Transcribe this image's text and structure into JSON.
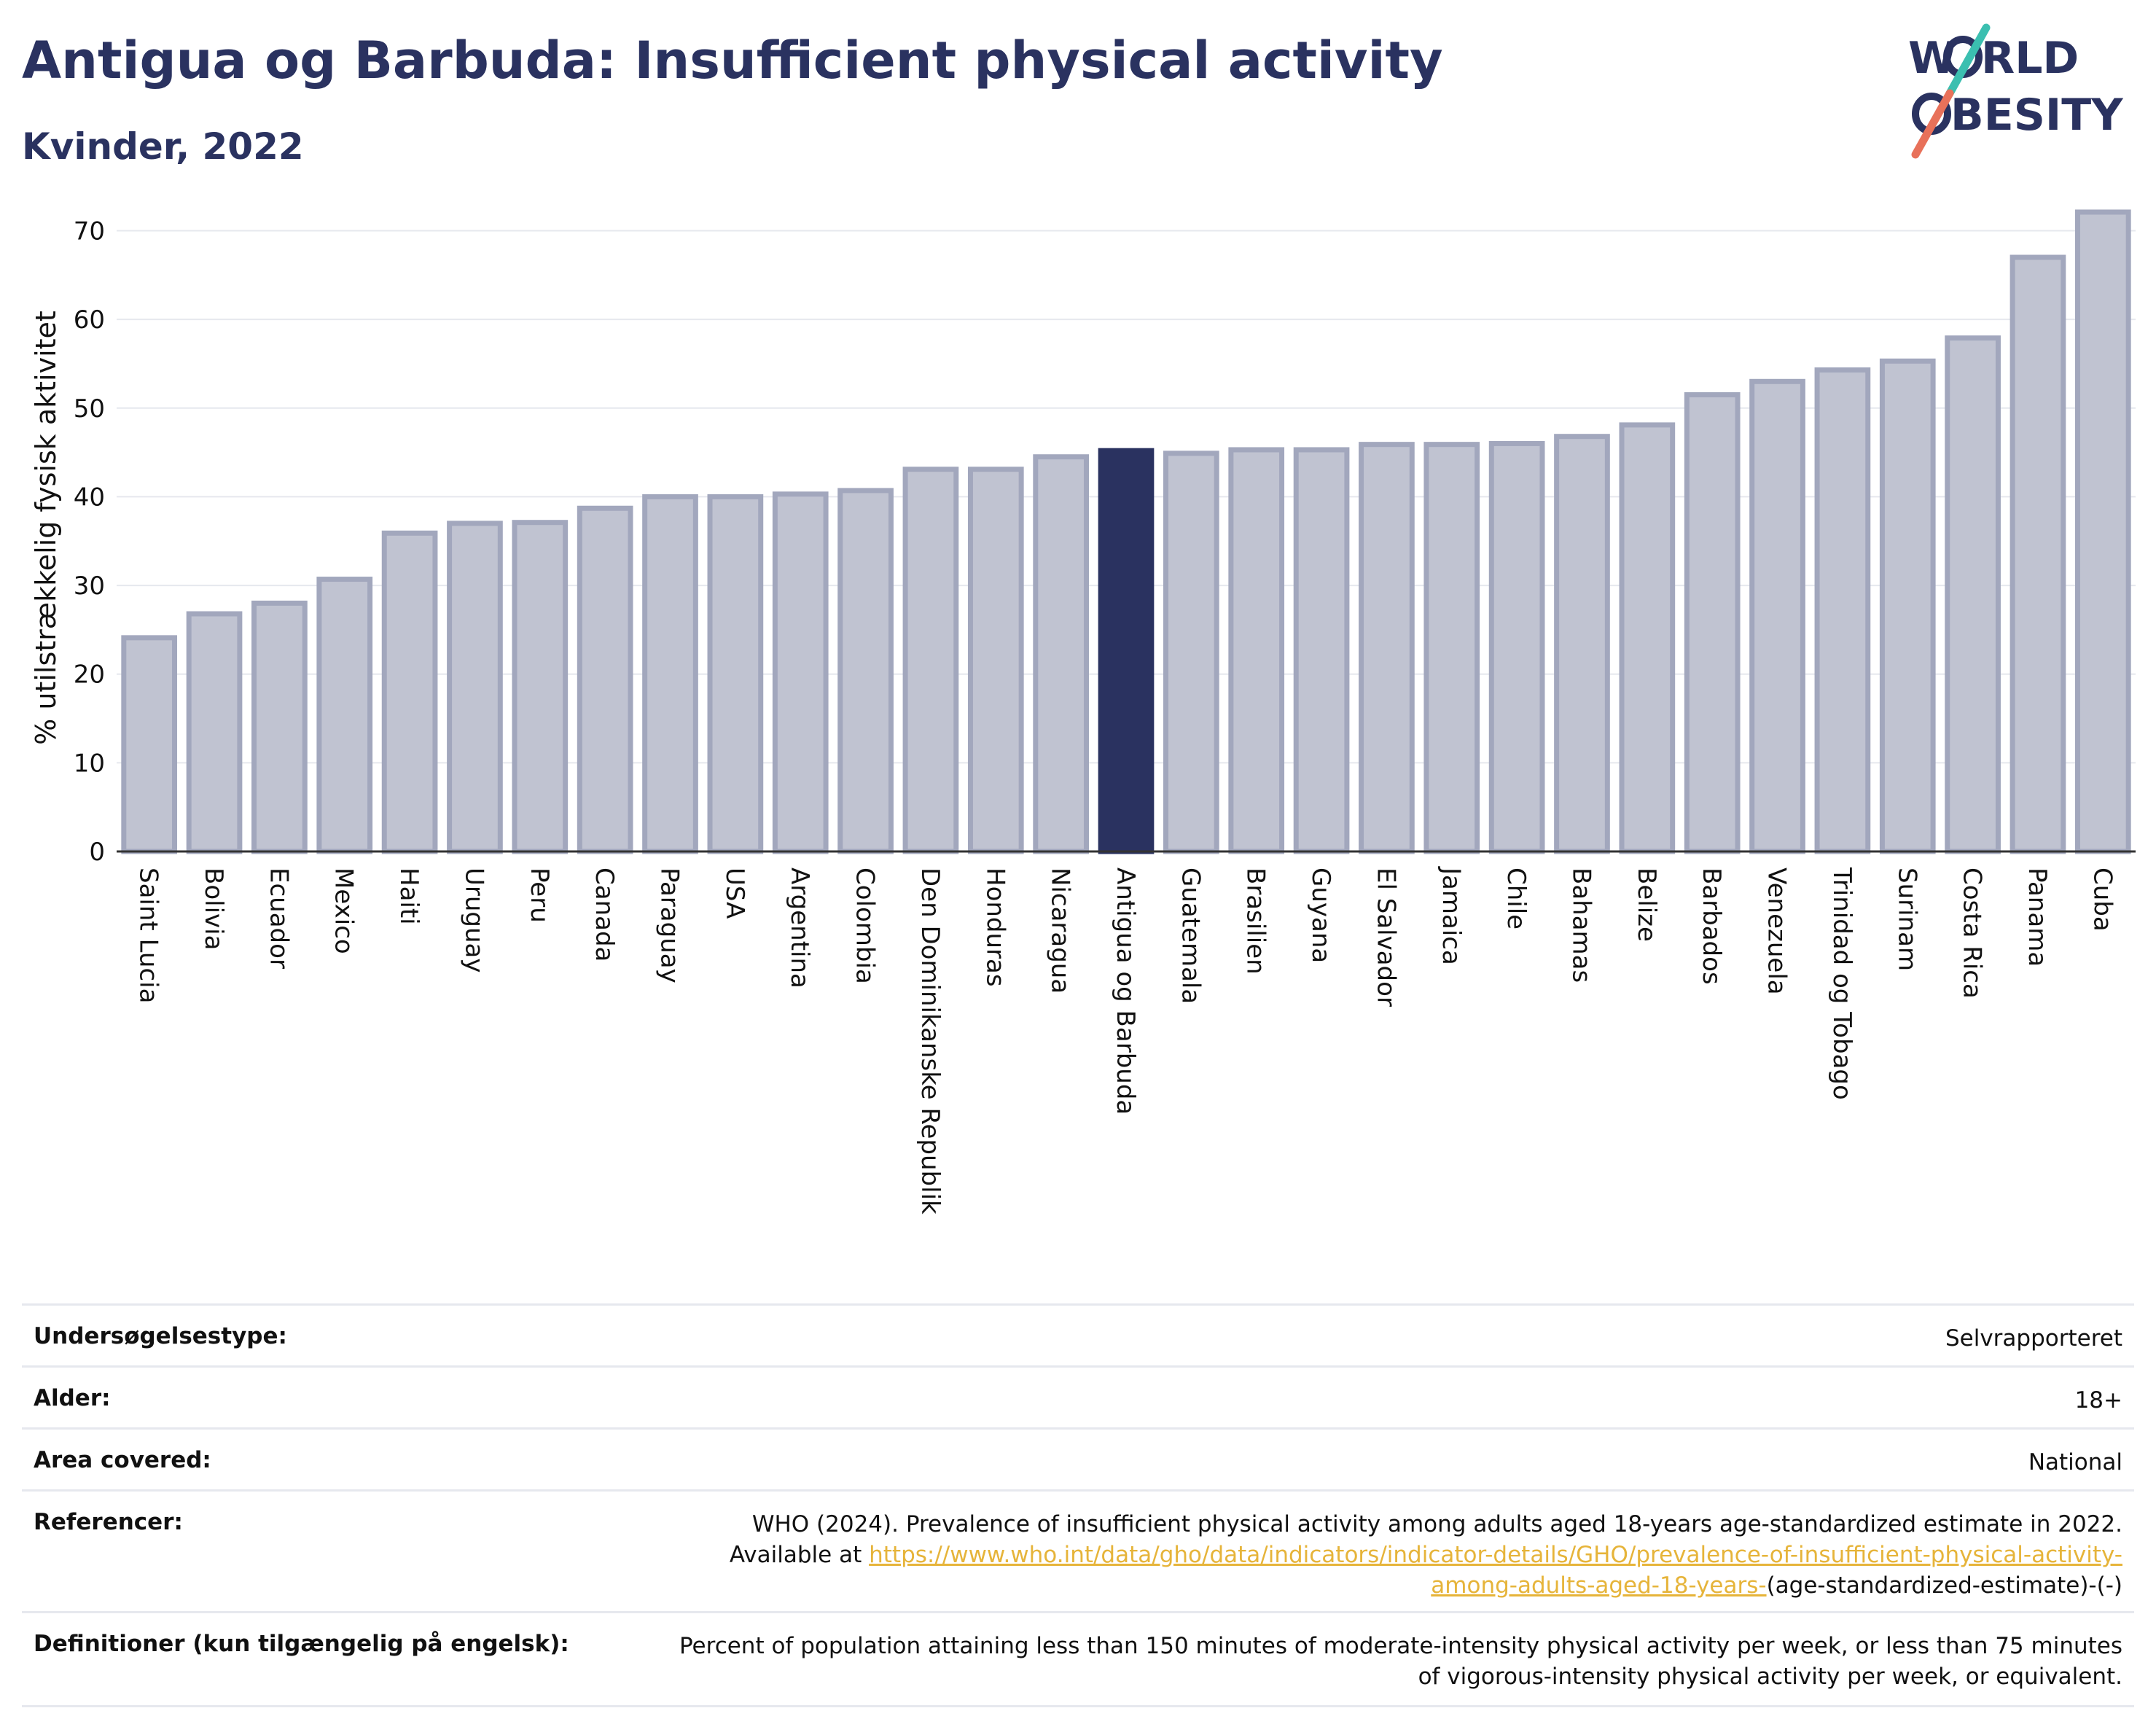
{
  "header": {
    "title": "Antigua og Barbuda: Insufficient physical activity",
    "subtitle": "Kvinder, 2022"
  },
  "logo": {
    "line1": "W",
    "line1b": "RLD",
    "line2": "BESITY",
    "colors": {
      "text": "#2a3260",
      "slash_top": "#3bbfb0",
      "slash_bottom": "#e8715a"
    }
  },
  "chart_data": {
    "type": "bar",
    "title": "Antigua og Barbuda: Insufficient physical activity",
    "subtitle": "Kvinder, 2022",
    "xlabel": "",
    "ylabel": "% utilstrækkelig fysisk aktivitet",
    "ylim": [
      0,
      73
    ],
    "yticks": [
      0,
      10,
      20,
      30,
      40,
      50,
      60,
      70
    ],
    "grid": true,
    "highlight": "Antigua og Barbuda",
    "colors": {
      "bar": "#c0c3d1",
      "bar_border": "#a2a7bd",
      "highlight": "#2a3260"
    },
    "categories": [
      "Saint Lucia",
      "Bolivia",
      "Ecuador",
      "Mexico",
      "Haiti",
      "Uruguay",
      "Peru",
      "Canada",
      "Paraguay",
      "USA",
      "Argentina",
      "Colombia",
      "Den Dominikanske Republik",
      "Honduras",
      "Nicaragua",
      "Antigua og Barbuda",
      "Guatemala",
      "Brasilien",
      "Guyana",
      "El Salvador",
      "Jamaica",
      "Chile",
      "Bahamas",
      "Belize",
      "Barbados",
      "Venezuela",
      "Trinidad og Tobago",
      "Surinam",
      "Costa Rica",
      "Panama",
      "Cuba"
    ],
    "values": [
      24.1,
      26.8,
      28.0,
      30.7,
      35.9,
      37.0,
      37.1,
      38.7,
      40.0,
      40.0,
      40.3,
      40.7,
      43.1,
      43.1,
      44.5,
      45.2,
      44.9,
      45.3,
      45.3,
      45.9,
      45.9,
      46.0,
      46.8,
      48.1,
      51.5,
      53.0,
      54.3,
      55.3,
      57.9,
      67.0,
      72.1
    ]
  },
  "info": {
    "rows": [
      {
        "label": "Undersøgelsestype:",
        "value": "Selvrapporteret"
      },
      {
        "label": "Alder:",
        "value": "18+"
      },
      {
        "label": "Area covered:",
        "value": "National"
      }
    ],
    "references_label": "Referencer:",
    "references_text": "WHO (2024). Prevalence of insufficient physical activity among adults aged 18-years age-standardized estimate in 2022. Available at",
    "references_link": "https://www.who.int/data/gho/data/indicators/indicator-details/GHO/prevalence-of-insufficient-physical-activity-among-adults-aged-18-years-",
    "references_suffix": "(age-standardized-estimate)-(-)",
    "definitions_label": "Definitioner (kun tilgængelig på engelsk):",
    "definitions_text": "Percent of population attaining less than 150 minutes of moderate-intensity physical activity per week, or less than 75 minutes of vigorous-intensity physical activity per week, or equivalent."
  }
}
